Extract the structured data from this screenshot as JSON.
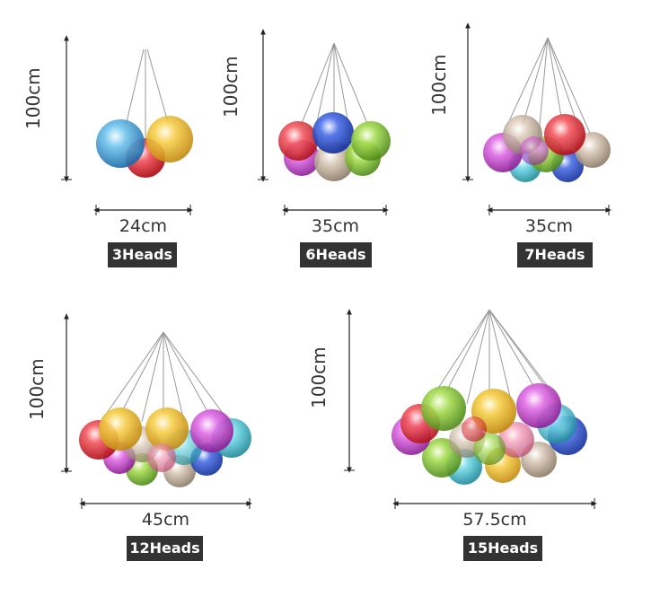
{
  "colors": {
    "text": "#333333",
    "badge_bg": "#333333",
    "badge_text": "#ffffff",
    "palette": [
      "#e8303a",
      "#f2c12e",
      "#3fa9e0",
      "#d94ee0",
      "#8fcf3a",
      "#2f55d6",
      "#f08aa8",
      "#c9b7a4",
      "#5fd0e0"
    ]
  },
  "variants": [
    {
      "height": "100cm",
      "width": "24cm",
      "heads": "3Heads"
    },
    {
      "height": "100cm",
      "width": "35cm",
      "heads": "6Heads"
    },
    {
      "height": "100cm",
      "width": "35cm",
      "heads": "7Heads"
    },
    {
      "height": "100cm",
      "width": "45cm",
      "heads": "12Heads"
    },
    {
      "height": "100cm",
      "width": "57.5cm",
      "heads": "15Heads"
    }
  ]
}
